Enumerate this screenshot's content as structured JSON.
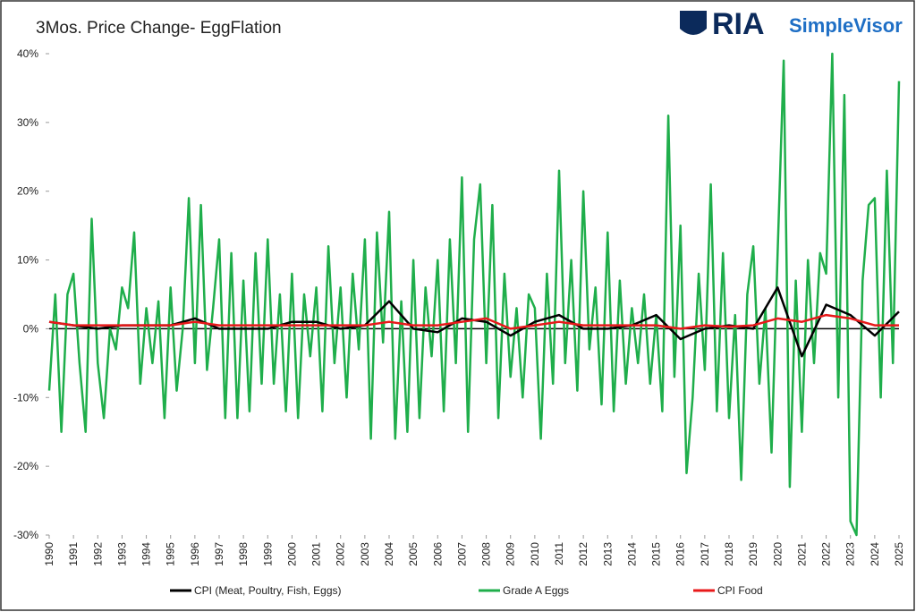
{
  "chart_data": {
    "type": "line",
    "title": "3Mos. Price Change- EggFlation",
    "brand": [
      "RIA",
      "SimpleVisor"
    ],
    "xlim": [
      1990,
      2025
    ],
    "xticks": [
      1990,
      1991,
      1992,
      1993,
      1994,
      1995,
      1996,
      1997,
      1998,
      1999,
      2000,
      2001,
      2002,
      2003,
      2004,
      2005,
      2006,
      2007,
      2008,
      2009,
      2010,
      2011,
      2012,
      2013,
      2014,
      2015,
      2016,
      2017,
      2018,
      2019,
      2020,
      2021,
      2022,
      2023,
      2024,
      2025
    ],
    "ylim": [
      -30,
      40
    ],
    "yticks": [
      {
        "value": -30,
        "label": "-30%"
      },
      {
        "value": -20,
        "label": "-20%"
      },
      {
        "value": -10,
        "label": "-10%"
      },
      {
        "value": 0,
        "label": "0%"
      },
      {
        "value": 10,
        "label": "10%"
      },
      {
        "value": 20,
        "label": "20%"
      },
      {
        "value": 30,
        "label": "30%"
      },
      {
        "value": 40,
        "label": "40%"
      }
    ],
    "series": [
      {
        "name": "CPI (Meat, Poultry, Fish, Eggs)",
        "color": "#000000",
        "x": [
          1990,
          1991,
          1992,
          1993,
          1994,
          1995,
          1996,
          1997,
          1998,
          1999,
          2000,
          2001,
          2002,
          2003,
          2004,
          2005,
          2006,
          2007,
          2008,
          2009,
          2010,
          2011,
          2012,
          2013,
          2014,
          2015,
          2016,
          2017,
          2018,
          2019,
          2020,
          2021,
          2022,
          2023,
          2024,
          2025
        ],
        "values": [
          1,
          0.5,
          0,
          0.5,
          0.5,
          0.5,
          1.5,
          0,
          0,
          0,
          1,
          1,
          0,
          0.5,
          4,
          0,
          -0.5,
          1.5,
          1,
          -1,
          1,
          2,
          0,
          0,
          0.5,
          2,
          -1.5,
          0,
          0.5,
          0,
          6,
          -4,
          3.5,
          2,
          -1,
          2.5
        ]
      },
      {
        "name": "Grade A Eggs",
        "color": "#1fae4b",
        "x": [
          1990,
          1990.25,
          1990.5,
          1990.75,
          1991,
          1991.25,
          1991.5,
          1991.75,
          1992,
          1992.25,
          1992.5,
          1992.75,
          1993,
          1993.25,
          1993.5,
          1993.75,
          1994,
          1994.25,
          1994.5,
          1994.75,
          1995,
          1995.25,
          1995.5,
          1995.75,
          1996,
          1996.25,
          1996.5,
          1996.75,
          1997,
          1997.25,
          1997.5,
          1997.75,
          1998,
          1998.25,
          1998.5,
          1998.75,
          1999,
          1999.25,
          1999.5,
          1999.75,
          2000,
          2000.25,
          2000.5,
          2000.75,
          2001,
          2001.25,
          2001.5,
          2001.75,
          2002,
          2002.25,
          2002.5,
          2002.75,
          2003,
          2003.25,
          2003.5,
          2003.75,
          2004,
          2004.25,
          2004.5,
          2004.75,
          2005,
          2005.25,
          2005.5,
          2005.75,
          2006,
          2006.25,
          2006.5,
          2006.75,
          2007,
          2007.25,
          2007.5,
          2007.75,
          2008,
          2008.25,
          2008.5,
          2008.75,
          2009,
          2009.25,
          2009.5,
          2009.75,
          2010,
          2010.25,
          2010.5,
          2010.75,
          2011,
          2011.25,
          2011.5,
          2011.75,
          2012,
          2012.25,
          2012.5,
          2012.75,
          2013,
          2013.25,
          2013.5,
          2013.75,
          2014,
          2014.25,
          2014.5,
          2014.75,
          2015,
          2015.25,
          2015.5,
          2015.75,
          2016,
          2016.25,
          2016.5,
          2016.75,
          2017,
          2017.25,
          2017.5,
          2017.75,
          2018,
          2018.25,
          2018.5,
          2018.75,
          2019,
          2019.25,
          2019.5,
          2019.75,
          2020,
          2020.25,
          2020.5,
          2020.75,
          2021,
          2021.25,
          2021.5,
          2021.75,
          2022,
          2022.25,
          2022.5,
          2022.75,
          2023,
          2023.25,
          2023.5,
          2023.75,
          2024,
          2024.25,
          2024.5,
          2024.75,
          2025
        ],
        "values": [
          -9,
          5,
          -15,
          5,
          8,
          -5,
          -15,
          16,
          -5,
          -13,
          0,
          -3,
          6,
          3,
          14,
          -8,
          3,
          -5,
          4,
          -13,
          6,
          -9,
          0,
          19,
          -5,
          18,
          -6,
          3,
          13,
          -13,
          11,
          -13,
          7,
          -12,
          11,
          -8,
          13,
          -8,
          5,
          -12,
          8,
          -13,
          5,
          -4,
          6,
          -12,
          12,
          -5,
          6,
          -10,
          8,
          -3,
          13,
          -16,
          14,
          -2,
          17,
          -16,
          4,
          -15,
          10,
          -13,
          6,
          -4,
          10,
          -12,
          13,
          -5,
          22,
          -15,
          13,
          21,
          -5,
          18,
          -13,
          8,
          -7,
          3,
          -10,
          5,
          3,
          -16,
          8,
          -8,
          23,
          -5,
          10,
          -9,
          20,
          -3,
          6,
          -11,
          14,
          -12,
          7,
          -8,
          3,
          -5,
          5,
          -8,
          2,
          -12,
          31,
          -7,
          15,
          -21,
          -10,
          8,
          -6,
          21,
          -12,
          11,
          -13,
          2,
          -22,
          5,
          12,
          -8,
          3,
          -18,
          11,
          39,
          -23,
          7,
          -15,
          10,
          -5,
          11,
          8,
          40,
          -10,
          34,
          -28,
          -30,
          7,
          18,
          19,
          -10,
          23,
          -5,
          36
        ]
      },
      {
        "name": "CPI Food",
        "color": "#e8191a",
        "x": [
          1990,
          1991,
          1992,
          1993,
          1994,
          1995,
          1996,
          1997,
          1998,
          1999,
          2000,
          2001,
          2002,
          2003,
          2004,
          2005,
          2006,
          2007,
          2008,
          2009,
          2010,
          2011,
          2012,
          2013,
          2014,
          2015,
          2016,
          2017,
          2018,
          2019,
          2020,
          2021,
          2022,
          2023,
          2024,
          2025
        ],
        "values": [
          1,
          0.5,
          0.5,
          0.5,
          0.5,
          0.5,
          1,
          0.5,
          0.5,
          0.5,
          0.5,
          0.5,
          0.5,
          0.5,
          1,
          0.5,
          0.5,
          1,
          1.5,
          0,
          0.5,
          1,
          0.5,
          0.5,
          0.5,
          0.5,
          0,
          0.5,
          0.3,
          0.5,
          1.5,
          1,
          2,
          1.5,
          0.5,
          0.5
        ]
      }
    ]
  }
}
